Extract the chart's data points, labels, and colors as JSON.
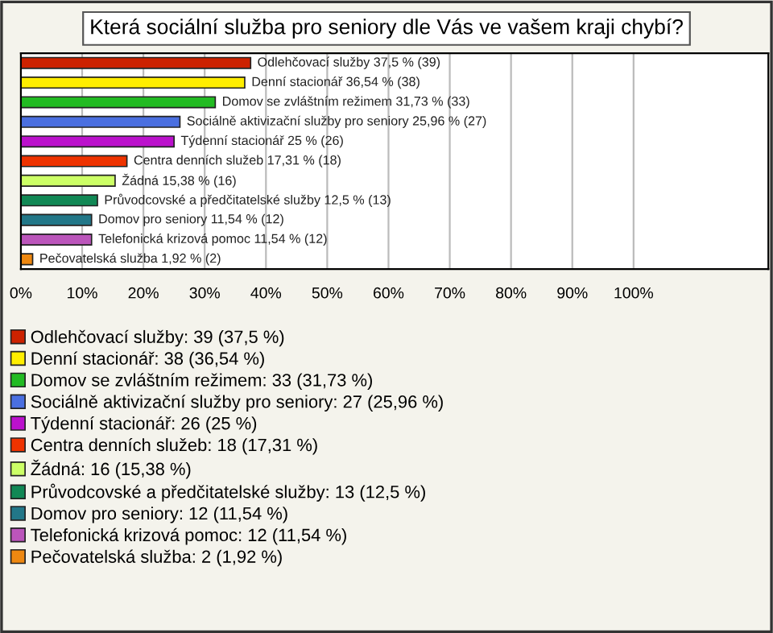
{
  "chart_data": {
    "type": "bar",
    "orientation": "horizontal",
    "title": "Která sociální služba pro seniory dle Vás ve vašem kraji chybí?",
    "categories": [
      null,
      null,
      null,
      null,
      null,
      null,
      null,
      null,
      null,
      null,
      null
    ],
    "series": [
      {
        "name": "Odlehčovací služby: 39 (37,5 %)",
        "color": "#cc2200",
        "values": [
          37.5,
          null,
          null,
          null,
          null,
          null,
          null,
          null,
          null,
          null,
          null
        ],
        "value_labels": [
          "Odlehčovací služby 37,5 % (39)",
          null,
          null,
          null,
          null,
          null,
          null,
          null,
          null,
          null,
          null
        ]
      },
      {
        "name": "Denní stacionář: 38 (36,54 %)",
        "color": "#ffee00",
        "values": [
          null,
          36.54,
          null,
          null,
          null,
          null,
          null,
          null,
          null,
          null,
          null
        ],
        "value_labels": [
          null,
          "Denní stacionář 36,54 % (38)",
          null,
          null,
          null,
          null,
          null,
          null,
          null,
          null,
          null
        ]
      },
      {
        "name": "Domov se zvláštním režimem: 33 (31,73 %)",
        "color": "#22bb22",
        "values": [
          null,
          null,
          31.73,
          null,
          null,
          null,
          null,
          null,
          null,
          null,
          null
        ],
        "value_labels": [
          null,
          null,
          "Domov se zvláštním režimem 31,73 % (33)",
          null,
          null,
          null,
          null,
          null,
          null,
          null,
          null
        ]
      },
      {
        "name": "Sociálně aktivizační služby pro seniory: 27 (25,96 %)",
        "color": "#4a6fe0",
        "values": [
          null,
          null,
          null,
          25.96,
          null,
          null,
          null,
          null,
          null,
          null,
          null
        ],
        "value_labels": [
          null,
          null,
          null,
          "Sociálně aktivizační služby pro seniory 25,96 % (27)",
          null,
          null,
          null,
          null,
          null,
          null,
          null
        ]
      },
      {
        "name": "Týdenní stacionář: 26 (25 %)",
        "color": "#bb11cc",
        "values": [
          null,
          null,
          null,
          null,
          25,
          null,
          null,
          null,
          null,
          null,
          null
        ],
        "value_labels": [
          null,
          null,
          null,
          null,
          "Týdenní stacionář 25 % (26)",
          null,
          null,
          null,
          null,
          null,
          null
        ]
      },
      {
        "name": "Centra denních služeb: 18 (17,31 %)",
        "color": "#ee3300",
        "values": [
          null,
          null,
          null,
          null,
          null,
          17.31,
          null,
          null,
          null,
          null,
          null
        ],
        "value_labels": [
          null,
          null,
          null,
          null,
          null,
          "Centra denních služeb 17,31 % (18)",
          null,
          null,
          null,
          null,
          null
        ]
      },
      {
        "name": "Žádná: 16 (15,38 %)",
        "color": "#ccff66",
        "values": [
          null,
          null,
          null,
          null,
          null,
          null,
          15.38,
          null,
          null,
          null,
          null
        ],
        "value_labels": [
          null,
          null,
          null,
          null,
          null,
          null,
          "Žádná 15,38 % (16)",
          null,
          null,
          null,
          null
        ]
      },
      {
        "name": "Průvodcovské a předčitatelské služby: 13 (12,5 %)",
        "color": "#118855",
        "values": [
          null,
          null,
          null,
          null,
          null,
          null,
          null,
          12.5,
          null,
          null,
          null
        ],
        "value_labels": [
          null,
          null,
          null,
          null,
          null,
          null,
          null,
          "Průvodcovské a předčitatelské služby 12,5 % (13)",
          null,
          null,
          null
        ]
      },
      {
        "name": "Domov pro seniory: 12 (11,54 %)",
        "color": "#227788",
        "values": [
          null,
          null,
          null,
          null,
          null,
          null,
          null,
          null,
          11.54,
          null,
          null
        ],
        "value_labels": [
          null,
          null,
          null,
          null,
          null,
          null,
          null,
          null,
          "Domov pro seniory 11,54 % (12)",
          null,
          null
        ]
      },
      {
        "name": "Telefonická krizová pomoc: 12 (11,54 %)",
        "color": "#bb55bb",
        "values": [
          null,
          null,
          null,
          null,
          null,
          null,
          null,
          null,
          null,
          11.54,
          null
        ],
        "value_labels": [
          null,
          null,
          null,
          null,
          null,
          null,
          null,
          null,
          null,
          "Telefonická krizová pomoc 11,54 % (12)",
          null
        ]
      },
      {
        "name": "Pečovatelská služba: 2 (1,92 %)",
        "color": "#ee8811",
        "values": [
          null,
          null,
          null,
          null,
          null,
          null,
          null,
          null,
          null,
          null,
          1.92
        ],
        "value_labels": [
          null,
          null,
          null,
          null,
          null,
          null,
          null,
          null,
          null,
          null,
          "Pečovatelská služba 1,92 % (2)"
        ]
      }
    ],
    "xlim": [
      0,
      122
    ],
    "xticks": [
      {
        "value": 0,
        "label": "0%"
      },
      {
        "value": 10,
        "label": "10%"
      },
      {
        "value": 20,
        "label": "20%"
      },
      {
        "value": 30,
        "label": "30%"
      },
      {
        "value": 40,
        "label": "40%"
      },
      {
        "value": 50,
        "label": "50%"
      },
      {
        "value": 60,
        "label": "60%"
      },
      {
        "value": 70,
        "label": "70%"
      },
      {
        "value": 80,
        "label": "80%"
      },
      {
        "value": 90,
        "label": "90%"
      },
      {
        "value": 100,
        "label": "100%"
      }
    ],
    "tick_labels": "x",
    "grid": "x",
    "legend": "bottom"
  }
}
